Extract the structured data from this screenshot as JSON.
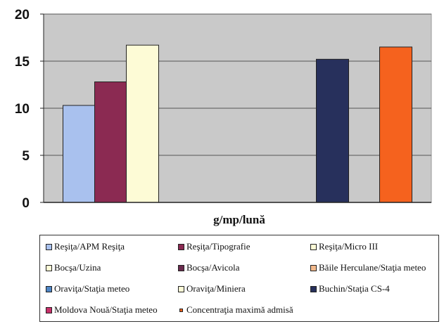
{
  "chart_data": {
    "type": "bar",
    "xlabel": "g/mp/lună",
    "ylim": [
      0,
      20
    ],
    "yticks": [
      0,
      5,
      10,
      15,
      20
    ],
    "grid": true,
    "legend_placement": "bottom",
    "series": [
      {
        "name": "Reşiţa/APM Reşiţa",
        "value": 10.3,
        "color": "#a9c1ee"
      },
      {
        "name": "Reşiţa/Tipografie",
        "value": 12.8,
        "color": "#8b2a52"
      },
      {
        "name": "Reşiţa/Micro III",
        "value": 16.7,
        "color": "#fdfbd6"
      },
      {
        "name": "Bocşa/Uzina",
        "value": null,
        "color": "#fdfbd6"
      },
      {
        "name": "Bocşa/Avicola",
        "value": null,
        "color": "#6a2b4e"
      },
      {
        "name": "Băile Herculane/Staţia meteo",
        "value": null,
        "color": "#f2b98c"
      },
      {
        "name": "Oraviţa/Staţia meteo",
        "value": null,
        "color": "#4f86c6"
      },
      {
        "name": "Oraviţa/Miniera",
        "value": null,
        "color": "#fdfbd6"
      },
      {
        "name": "Buchin/Staţia CS-4",
        "value": 15.2,
        "color": "#27305c"
      },
      {
        "name": "Moldova Nouă/Staţia meteo",
        "value": null,
        "color": "#c8306a"
      },
      {
        "name": "Concentraţia maximă admisă",
        "value": 16.5,
        "color": "#f5621e"
      }
    ]
  }
}
